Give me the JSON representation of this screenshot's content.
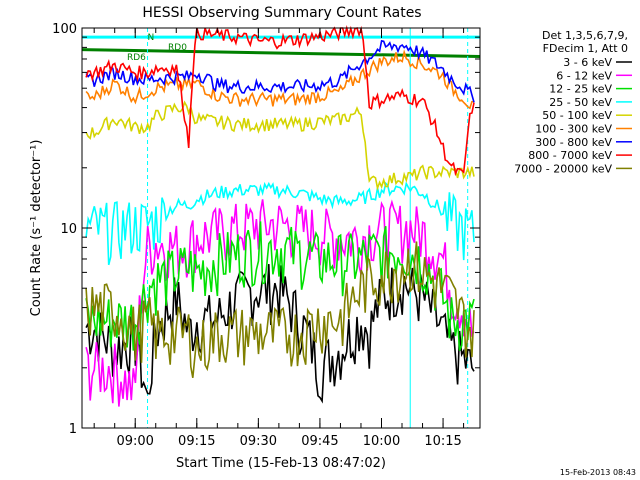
{
  "chart_data": {
    "type": "line",
    "title": "HESSI Observing Summary Count Rates",
    "xlabel": "Start Time (15-Feb-13 08:47:02)",
    "ylabel": "Count Rate (s⁻¹ detector⁻¹)",
    "yscale": "log",
    "ylim": [
      1,
      100
    ],
    "xlim": [
      "08:47:02",
      "10:24:00"
    ],
    "x_ticks": [
      "09:00",
      "09:15",
      "09:30",
      "09:45",
      "10:00",
      "10:15"
    ],
    "y_ticks": [
      "1",
      "10",
      "100"
    ],
    "legend_header": [
      "Det 1,3,5,6,7,9,",
      "FDecim 1, Att 0"
    ],
    "legend_position": "right",
    "footer": "15-Feb-2013 08:43",
    "markers": [
      {
        "label": "N",
        "time": "09:03",
        "type": "flag"
      },
      {
        "label": "RD0",
        "time": "09:08",
        "type": "flag"
      },
      {
        "label": "RD6",
        "time": "08:58",
        "type": "flag"
      }
    ],
    "x": [
      "08:50",
      "08:55",
      "09:00",
      "09:03",
      "09:05",
      "09:10",
      "09:13",
      "09:15",
      "09:20",
      "09:25",
      "09:30",
      "09:35",
      "09:40",
      "09:45",
      "09:50",
      "09:55",
      "09:57",
      "10:00",
      "10:05",
      "10:07",
      "10:10",
      "10:15",
      "10:17",
      "10:20",
      "10:22"
    ],
    "series": [
      {
        "name": "3 - 6 keV",
        "color": "#000000",
        "values": [
          3.2,
          2.5,
          2.8,
          1.3,
          3.0,
          4.5,
          3.0,
          3.5,
          3.5,
          4.5,
          5.0,
          5.0,
          3.5,
          2.0,
          2.5,
          3.5,
          3.0,
          4.5,
          5.5,
          5.0,
          4.5,
          3.0,
          2.5,
          2.2,
          2.0
        ]
      },
      {
        "name": "6 - 12 keV",
        "color": "#ff00ff",
        "values": [
          2.0,
          2.0,
          1.5,
          8.0,
          8.5,
          8.0,
          8.5,
          9.0,
          9.5,
          10.0,
          10.5,
          10.5,
          10.0,
          9.5,
          9.0,
          9.0,
          9.5,
          10.0,
          10.0,
          10.0,
          9.5,
          7.0,
          5.0,
          4.0,
          3.0
        ]
      },
      {
        "name": "12 - 25 keV",
        "color": "#00e000",
        "values": [
          3.5,
          3.5,
          3.5,
          5.0,
          5.5,
          6.0,
          6.5,
          6.0,
          7.0,
          7.5,
          8.0,
          8.0,
          7.5,
          7.0,
          7.0,
          7.0,
          7.5,
          7.5,
          8.0,
          7.5,
          7.0,
          4.5,
          3.5,
          3.5,
          3.5
        ]
      },
      {
        "name": "25 - 50 keV",
        "color": "#00ffff",
        "values": [
          10.0,
          10.0,
          10.5,
          10.5,
          11.0,
          13.0,
          13.0,
          14.0,
          15.0,
          15.5,
          15.5,
          15.5,
          15.0,
          14.0,
          13.5,
          14.0,
          14.5,
          15.5,
          16.0,
          16.0,
          15.0,
          12.0,
          11.0,
          10.0,
          9.5
        ]
      },
      {
        "name": "50 - 100 keV",
        "color": "#d4d400",
        "values": [
          30,
          35,
          32,
          32,
          36,
          40,
          40,
          35,
          34,
          33,
          33,
          33,
          33,
          34,
          35,
          38,
          17,
          17,
          18,
          18,
          19,
          19,
          19,
          19,
          19
        ]
      },
      {
        "name": "100 - 300 keV",
        "color": "#ff8000",
        "values": [
          45,
          53,
          45,
          48,
          50,
          52,
          52,
          53,
          46,
          44,
          44,
          44,
          44,
          46,
          48,
          58,
          62,
          68,
          72,
          70,
          66,
          58,
          50,
          45,
          40
        ]
      },
      {
        "name": "300 - 800 keV",
        "color": "#0000ff",
        "values": [
          55,
          60,
          56,
          55,
          56,
          57,
          57,
          60,
          52,
          51,
          51,
          51,
          51,
          52,
          55,
          67,
          72,
          80,
          82,
          80,
          74,
          62,
          56,
          50,
          46
        ]
      },
      {
        "name": "800 - 7000 keV",
        "color": "#ff0000",
        "values": [
          60,
          65,
          60,
          60,
          63,
          63,
          25,
          95,
          92,
          90,
          86,
          86,
          88,
          91,
          95,
          100,
          42,
          44,
          46,
          45,
          43,
          25,
          20,
          18,
          40
        ]
      },
      {
        "name": "7000 - 20000 keV",
        "color": "#808000",
        "values": [
          4.0,
          4.0,
          3.0,
          3.5,
          3.0,
          3.0,
          3.0,
          2.5,
          3.0,
          3.0,
          3.0,
          3.0,
          3.0,
          3.5,
          3.5,
          5.0,
          5.5,
          6.0,
          6.5,
          7.0,
          6.0,
          5.0,
          4.5,
          3.5,
          3.0
        ]
      }
    ],
    "background_lines": [
      {
        "color": "#00ffff",
        "style": "solid",
        "y": [
          90,
          90
        ]
      },
      {
        "color": "#008000",
        "style": "solid",
        "y": [
          78,
          72
        ]
      }
    ]
  }
}
